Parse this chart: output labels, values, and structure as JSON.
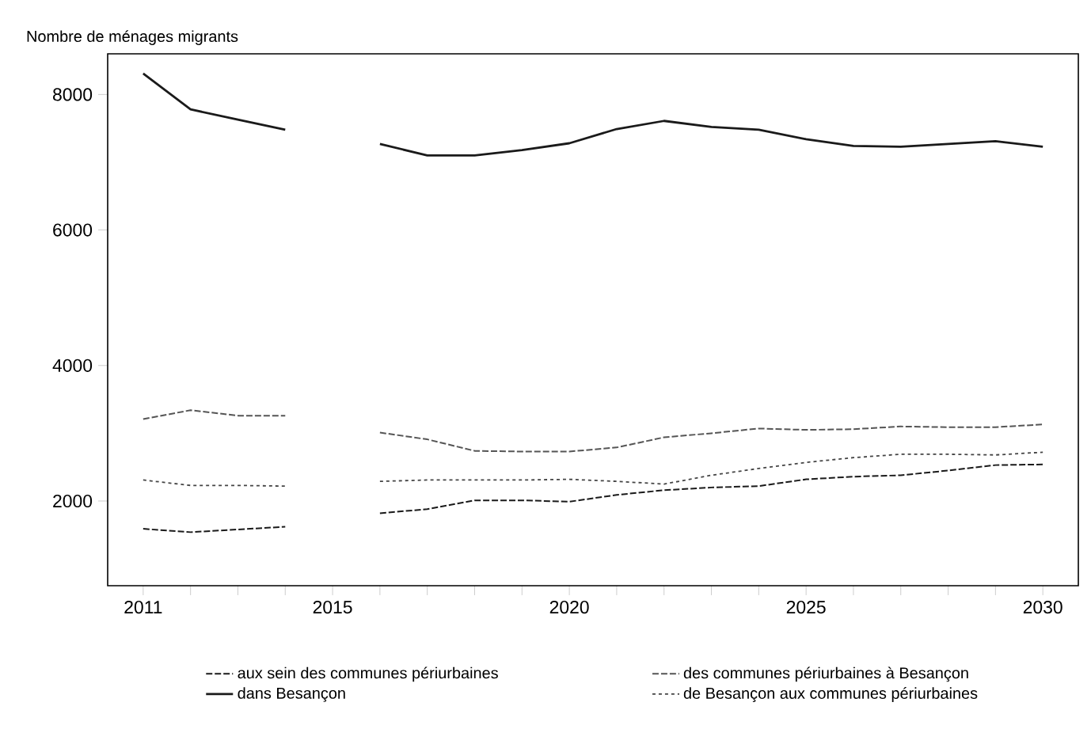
{
  "chart_data": {
    "type": "line",
    "ylabel": "Nombre de ménages migrants",
    "x": [
      2011,
      2012,
      2013,
      2014,
      2015,
      2016,
      2017,
      2018,
      2019,
      2020,
      2021,
      2022,
      2023,
      2024,
      2025,
      2026,
      2027,
      2028,
      2029,
      2030
    ],
    "xlim": [
      2010.25,
      2030.75
    ],
    "ylim": [
      750,
      8600
    ],
    "xticks": [
      2011,
      {
        "value": 2012,
        "label": null
      },
      {
        "value": 2013,
        "label": null
      },
      {
        "value": 2014,
        "label": null
      },
      2015,
      {
        "value": 2016,
        "label": null
      },
      {
        "value": 2017,
        "label": null
      },
      {
        "value": 2018,
        "label": null
      },
      {
        "value": 2019,
        "label": null
      },
      2020,
      {
        "value": 2021,
        "label": null
      },
      {
        "value": 2022,
        "label": null
      },
      {
        "value": 2023,
        "label": null
      },
      {
        "value": 2024,
        "label": null
      },
      2025,
      {
        "value": 2026,
        "label": null
      },
      {
        "value": 2027,
        "label": null
      },
      {
        "value": 2028,
        "label": null
      },
      {
        "value": 2029,
        "label": null
      },
      2030
    ],
    "yticks": [
      2000,
      4000,
      6000,
      8000
    ],
    "grid": false,
    "legend": "bottom",
    "marker": "none",
    "series": [
      {
        "name": "aux sein des communes périurbaines",
        "color": "#1a1a1a",
        "line_style": "dashed",
        "values": [
          1590,
          1540,
          1580,
          1620,
          null,
          1820,
          1880,
          2010,
          2010,
          1990,
          2090,
          2160,
          2200,
          2220,
          2320,
          2360,
          2380,
          2450,
          2530,
          2540
        ]
      },
      {
        "name": "des communes périurbaines à Besançon",
        "color": "#555555",
        "line_style": "dashed",
        "values": [
          3210,
          3340,
          3260,
          3260,
          null,
          3010,
          2910,
          2740,
          2730,
          2730,
          2790,
          2940,
          3000,
          3070,
          3050,
          3060,
          3100,
          3090,
          3090,
          3130
        ]
      },
      {
        "name": "dans Besançon",
        "color": "#1a1a1a",
        "line_style": "solid",
        "values": [
          8310,
          7780,
          7630,
          7480,
          null,
          7270,
          7100,
          7100,
          7180,
          7280,
          7490,
          7610,
          7520,
          7480,
          7340,
          7240,
          7230,
          7270,
          7310,
          7230
        ]
      },
      {
        "name": "de Besançon aux communes périurbaines",
        "color": "#444444",
        "line_style": "dotted",
        "values": [
          2310,
          2230,
          2230,
          2220,
          null,
          2290,
          2310,
          2310,
          2310,
          2320,
          2290,
          2250,
          2380,
          2480,
          2570,
          2640,
          2690,
          2690,
          2680,
          2720
        ]
      }
    ]
  }
}
